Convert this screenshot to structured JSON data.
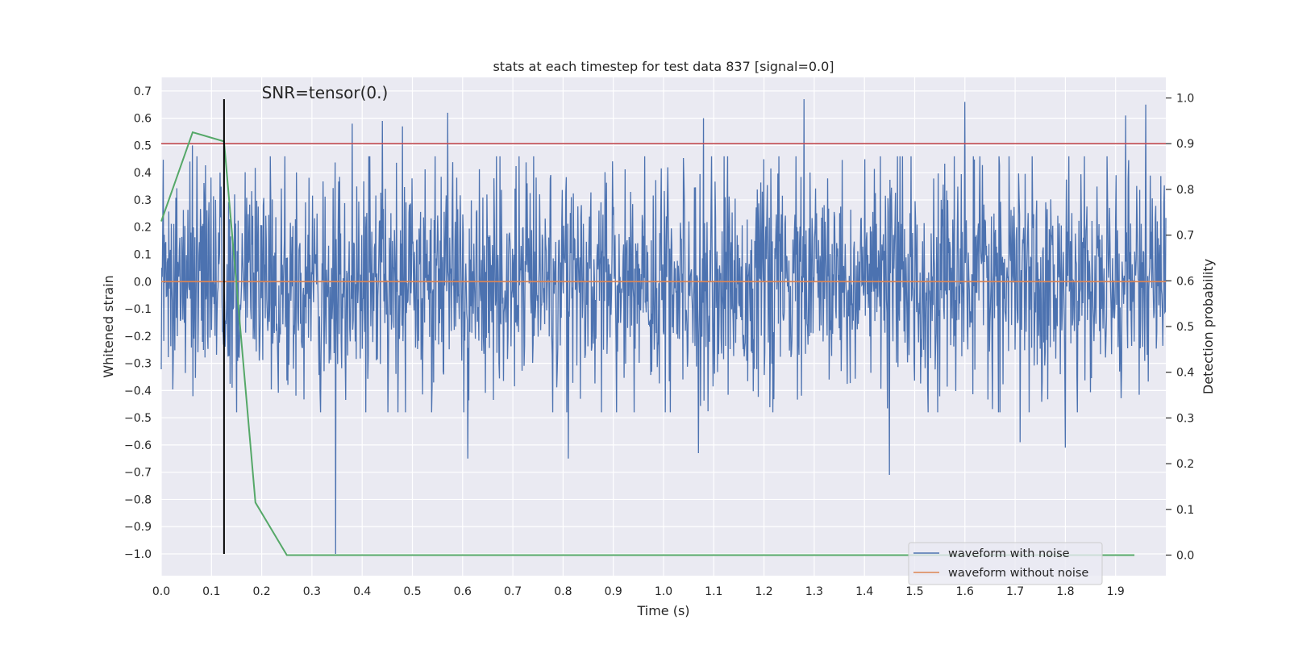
{
  "chart_data": {
    "type": "line",
    "title": "stats at each timestep for test data 837 [signal=0.0]",
    "xlabel": "Time (s)",
    "ylabel": "Whitened strain",
    "y2label": "Detection probability",
    "xlim": [
      0.0,
      2.0
    ],
    "ylim": [
      -1.08,
      0.75
    ],
    "y2lim": [
      -0.045,
      1.045
    ],
    "xticks": [
      "0.0",
      "0.1",
      "0.2",
      "0.3",
      "0.4",
      "0.5",
      "0.6",
      "0.7",
      "0.8",
      "0.9",
      "1.0",
      "1.1",
      "1.2",
      "1.3",
      "1.4",
      "1.5",
      "1.6",
      "1.7",
      "1.8",
      "1.9"
    ],
    "xtick_values": [
      0.0,
      0.1,
      0.2,
      0.3,
      0.4,
      0.5,
      0.6,
      0.7,
      0.8,
      0.9,
      1.0,
      1.1,
      1.2,
      1.3,
      1.4,
      1.5,
      1.6,
      1.7,
      1.8,
      1.9
    ],
    "yticks": [
      "0.7",
      "0.6",
      "0.5",
      "0.4",
      "0.3",
      "0.2",
      "0.1",
      "0.0",
      "−0.1",
      "−0.2",
      "−0.3",
      "−0.4",
      "−0.5",
      "−0.6",
      "−0.7",
      "−0.8",
      "−0.9",
      "−1.0"
    ],
    "ytick_values": [
      0.7,
      0.6,
      0.5,
      0.4,
      0.3,
      0.2,
      0.1,
      0.0,
      -0.1,
      -0.2,
      -0.3,
      -0.4,
      -0.5,
      -0.6,
      -0.7,
      -0.8,
      -0.9,
      -1.0
    ],
    "y2ticks": [
      "1.0",
      "0.9",
      "0.8",
      "0.7",
      "0.6",
      "0.5",
      "0.4",
      "0.3",
      "0.2",
      "0.1",
      "0.0"
    ],
    "y2tick_values": [
      1.0,
      0.9,
      0.8,
      0.7,
      0.6,
      0.5,
      0.4,
      0.3,
      0.2,
      0.1,
      0.0
    ],
    "annotation": "SNR=tensor(0.)",
    "annotation_x": 0.2,
    "annotation_y": 0.67,
    "vertical_marker": {
      "x": 0.125,
      "y_from": -1.0,
      "y_to": 0.67,
      "color": "#000000"
    },
    "threshold": {
      "y2": 0.9,
      "color": "#c44e52"
    },
    "noise_spikes": [
      {
        "x": 0.347,
        "y": -1.0
      },
      {
        "x": 0.062,
        "y": 0.5
      },
      {
        "x": 0.38,
        "y": 0.58
      },
      {
        "x": 0.44,
        "y": 0.59
      },
      {
        "x": 0.48,
        "y": 0.57
      },
      {
        "x": 0.57,
        "y": 0.62
      },
      {
        "x": 0.61,
        "y": -0.65
      },
      {
        "x": 0.81,
        "y": -0.65
      },
      {
        "x": 1.08,
        "y": 0.6
      },
      {
        "x": 1.07,
        "y": -0.63
      },
      {
        "x": 1.28,
        "y": 0.67
      },
      {
        "x": 1.45,
        "y": -0.71
      },
      {
        "x": 1.6,
        "y": 0.66
      },
      {
        "x": 1.71,
        "y": -0.59
      },
      {
        "x": 1.8,
        "y": -0.61
      },
      {
        "x": 1.96,
        "y": 0.65
      },
      {
        "x": 1.92,
        "y": 0.61
      }
    ],
    "series": [
      {
        "name": "waveform with noise",
        "color": "#4c72b0",
        "axis": "left",
        "x_start": 0.0,
        "x_end": 2.0,
        "samples": 2000,
        "amplitude_std": 0.2
      },
      {
        "name": "waveform without noise",
        "color": "#dd8452",
        "axis": "left",
        "x": [
          0.0,
          2.0
        ],
        "y": [
          0.0,
          0.0
        ]
      },
      {
        "name": "Detection probability",
        "color": "#55a868",
        "axis": "right",
        "x": [
          0.0,
          0.0625,
          0.125,
          0.1875,
          0.25,
          0.3125,
          0.375,
          0.4375,
          0.5,
          1.9375
        ],
        "y": [
          0.73,
          0.925,
          0.905,
          0.115,
          0.0,
          0.0,
          0.0,
          0.0,
          0.0,
          0.0
        ]
      }
    ],
    "legend_position": "lower-right",
    "legend": [
      "waveform with noise",
      "waveform without noise"
    ]
  }
}
